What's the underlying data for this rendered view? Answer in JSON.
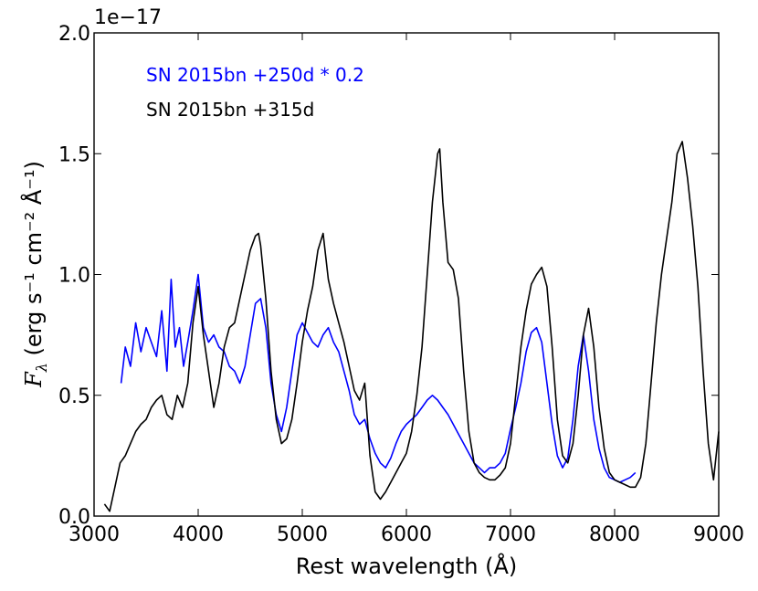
{
  "chart_data": {
    "type": "line",
    "xlabel": "Rest wavelength (Å)",
    "ylabel": "(erg s⁻¹ cm⁻² Å⁻¹)",
    "ylabel_symbol": "F",
    "ylabel_subscript": "λ",
    "y_offset_label": "1e−17",
    "xlim": [
      3000,
      9000
    ],
    "ylim": [
      0.0,
      2.0
    ],
    "x_ticks": [
      3000,
      4000,
      5000,
      6000,
      7000,
      8000,
      9000
    ],
    "x_tick_labels": [
      "3000",
      "4000",
      "5000",
      "6000",
      "7000",
      "8000",
      "9000"
    ],
    "y_ticks": [
      0.0,
      0.5,
      1.0,
      1.5,
      2.0
    ],
    "y_tick_labels": [
      "0.0",
      "0.5",
      "1.0",
      "1.5",
      "2.0"
    ],
    "grid": false,
    "legend_placement": "top-left",
    "series": [
      {
        "name": "SN 2015bn +250d * 0.2",
        "color": "#0000ff",
        "x": [
          3260,
          3300,
          3350,
          3400,
          3450,
          3500,
          3550,
          3600,
          3650,
          3700,
          3740,
          3780,
          3820,
          3860,
          3900,
          3950,
          4000,
          4050,
          4100,
          4150,
          4200,
          4250,
          4300,
          4350,
          4400,
          4450,
          4500,
          4550,
          4600,
          4650,
          4700,
          4750,
          4800,
          4850,
          4900,
          4950,
          5000,
          5050,
          5100,
          5150,
          5200,
          5250,
          5300,
          5350,
          5400,
          5450,
          5500,
          5550,
          5600,
          5650,
          5700,
          5750,
          5800,
          5850,
          5900,
          5950,
          6000,
          6050,
          6100,
          6150,
          6200,
          6250,
          6300,
          6350,
          6400,
          6450,
          6500,
          6550,
          6600,
          6650,
          6700,
          6750,
          6800,
          6850,
          6900,
          6950,
          7000,
          7050,
          7100,
          7150,
          7200,
          7250,
          7300,
          7350,
          7400,
          7450,
          7500,
          7550,
          7600,
          7650,
          7700,
          7750,
          7800,
          7850,
          7900,
          7950,
          8000,
          8050,
          8100,
          8150,
          8200
        ],
        "y": [
          0.55,
          0.7,
          0.62,
          0.8,
          0.68,
          0.78,
          0.72,
          0.66,
          0.85,
          0.6,
          0.98,
          0.7,
          0.78,
          0.62,
          0.72,
          0.85,
          1.0,
          0.78,
          0.72,
          0.75,
          0.7,
          0.68,
          0.62,
          0.6,
          0.55,
          0.62,
          0.75,
          0.88,
          0.9,
          0.78,
          0.55,
          0.42,
          0.35,
          0.45,
          0.6,
          0.75,
          0.8,
          0.76,
          0.72,
          0.7,
          0.75,
          0.78,
          0.72,
          0.68,
          0.6,
          0.52,
          0.42,
          0.38,
          0.4,
          0.32,
          0.26,
          0.22,
          0.2,
          0.24,
          0.3,
          0.35,
          0.38,
          0.4,
          0.42,
          0.45,
          0.48,
          0.5,
          0.48,
          0.45,
          0.42,
          0.38,
          0.34,
          0.3,
          0.26,
          0.22,
          0.2,
          0.18,
          0.2,
          0.2,
          0.22,
          0.26,
          0.36,
          0.45,
          0.55,
          0.68,
          0.76,
          0.78,
          0.72,
          0.55,
          0.38,
          0.25,
          0.2,
          0.24,
          0.4,
          0.62,
          0.75,
          0.6,
          0.4,
          0.28,
          0.2,
          0.16,
          0.15,
          0.14,
          0.15,
          0.16,
          0.18
        ]
      },
      {
        "name": "SN 2015bn +315d",
        "color": "#000000",
        "x": [
          3100,
          3150,
          3200,
          3250,
          3300,
          3350,
          3400,
          3450,
          3500,
          3550,
          3600,
          3650,
          3700,
          3750,
          3800,
          3850,
          3900,
          3950,
          4000,
          4050,
          4100,
          4150,
          4200,
          4250,
          4300,
          4350,
          4400,
          4450,
          4500,
          4550,
          4580,
          4600,
          4650,
          4700,
          4750,
          4800,
          4850,
          4900,
          4950,
          5000,
          5050,
          5100,
          5150,
          5200,
          5250,
          5300,
          5350,
          5400,
          5450,
          5500,
          5550,
          5600,
          5650,
          5700,
          5750,
          5800,
          5850,
          5900,
          5950,
          6000,
          6050,
          6100,
          6150,
          6200,
          6250,
          6300,
          6320,
          6350,
          6400,
          6450,
          6500,
          6550,
          6600,
          6650,
          6700,
          6750,
          6800,
          6850,
          6900,
          6950,
          7000,
          7050,
          7100,
          7150,
          7200,
          7250,
          7300,
          7350,
          7400,
          7450,
          7500,
          7550,
          7600,
          7650,
          7700,
          7750,
          7800,
          7850,
          7900,
          7950,
          8000,
          8050,
          8100,
          8150,
          8200,
          8250,
          8300,
          8350,
          8400,
          8450,
          8500,
          8550,
          8600,
          8650,
          8700,
          8750,
          8800,
          8850,
          8900,
          8950,
          9000
        ],
        "y": [
          0.05,
          0.02,
          0.12,
          0.22,
          0.25,
          0.3,
          0.35,
          0.38,
          0.4,
          0.45,
          0.48,
          0.5,
          0.42,
          0.4,
          0.5,
          0.45,
          0.55,
          0.8,
          0.95,
          0.75,
          0.6,
          0.45,
          0.55,
          0.7,
          0.78,
          0.8,
          0.9,
          1.0,
          1.1,
          1.16,
          1.17,
          1.12,
          0.9,
          0.6,
          0.4,
          0.3,
          0.32,
          0.4,
          0.55,
          0.72,
          0.85,
          0.95,
          1.1,
          1.17,
          0.98,
          0.88,
          0.8,
          0.72,
          0.62,
          0.52,
          0.48,
          0.55,
          0.25,
          0.1,
          0.07,
          0.1,
          0.14,
          0.18,
          0.22,
          0.26,
          0.35,
          0.5,
          0.7,
          1.0,
          1.3,
          1.5,
          1.52,
          1.3,
          1.05,
          1.02,
          0.9,
          0.6,
          0.35,
          0.22,
          0.18,
          0.16,
          0.15,
          0.15,
          0.17,
          0.2,
          0.3,
          0.5,
          0.7,
          0.85,
          0.96,
          1.0,
          1.03,
          0.95,
          0.7,
          0.4,
          0.25,
          0.22,
          0.3,
          0.5,
          0.75,
          0.86,
          0.7,
          0.45,
          0.28,
          0.18,
          0.15,
          0.14,
          0.13,
          0.12,
          0.12,
          0.16,
          0.3,
          0.55,
          0.8,
          1.0,
          1.15,
          1.3,
          1.5,
          1.55,
          1.4,
          1.2,
          0.95,
          0.6,
          0.3,
          0.15,
          0.35
        ]
      }
    ]
  }
}
